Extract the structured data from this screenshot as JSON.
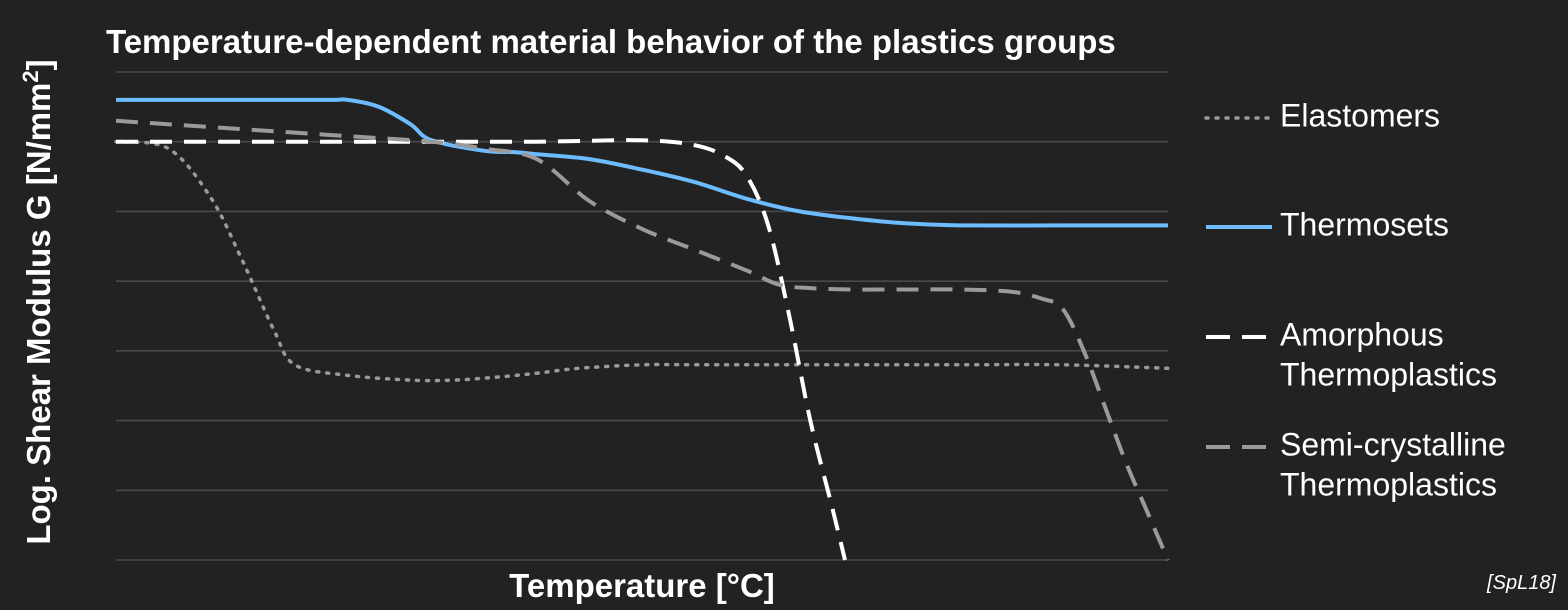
{
  "chart_data": {
    "type": "line",
    "title": "Temperature-dependent material behavior of the plastics groups",
    "xlabel": "Temperature [°C]",
    "ylabel_main": "Log. Shear Modulus G [N/mm",
    "ylabel_sup": "2",
    "ylabel_end": "]",
    "source": "[SpL18]",
    "xlim": [
      0,
      100
    ],
    "ylim": [
      0,
      7
    ],
    "grid": true,
    "legend_position": "right",
    "series": [
      {
        "name": "Elastomers",
        "style": "dotted",
        "color": "#9a9a9a",
        "x": [
          0,
          5,
          9,
          12,
          15,
          17,
          22,
          28,
          32,
          36,
          40,
          44,
          50,
          55,
          60,
          70,
          80,
          90,
          100
        ],
        "y": [
          6,
          5.9,
          5.2,
          4.3,
          3.3,
          2.8,
          2.65,
          2.58,
          2.58,
          2.62,
          2.68,
          2.75,
          2.8,
          2.8,
          2.8,
          2.8,
          2.8,
          2.8,
          2.75
        ]
      },
      {
        "name": "Thermosets",
        "style": "solid",
        "color": "#6cbcff",
        "x": [
          0,
          10,
          20,
          22,
          25,
          28,
          30,
          35,
          38,
          40,
          45,
          50,
          55,
          60,
          65,
          70,
          75,
          80,
          90,
          100
        ],
        "y": [
          6.6,
          6.6,
          6.6,
          6.6,
          6.5,
          6.25,
          6.02,
          5.87,
          5.85,
          5.82,
          5.75,
          5.6,
          5.42,
          5.18,
          5.0,
          4.9,
          4.83,
          4.8,
          4.8,
          4.8
        ]
      },
      {
        "name": "Amorphous Thermoplastics",
        "style": "dashed",
        "color": "#ffffff",
        "x": [
          0,
          10,
          20,
          30,
          40,
          50,
          55,
          58,
          60,
          62,
          64,
          66,
          68,
          69.3
        ],
        "y": [
          6,
          6,
          6,
          6,
          6,
          6.02,
          5.95,
          5.78,
          5.5,
          4.8,
          3.5,
          2.0,
          0.8,
          0.0
        ]
      },
      {
        "name": "Semi-crystalline Thermoplastics",
        "style": "dashed",
        "color": "#9a9a9a",
        "x": [
          0,
          10,
          20,
          30,
          35,
          40,
          45,
          50,
          55,
          60,
          63,
          66,
          70,
          75,
          80,
          85,
          88,
          90,
          92,
          94,
          96,
          98,
          100
        ],
        "y": [
          6.3,
          6.2,
          6.1,
          6.0,
          5.9,
          5.75,
          5.15,
          4.75,
          4.45,
          4.15,
          3.95,
          3.9,
          3.88,
          3.88,
          3.88,
          3.85,
          3.75,
          3.6,
          3.0,
          2.2,
          1.4,
          0.7,
          0.0
        ]
      }
    ],
    "legend": [
      {
        "lines": [
          "Elastomers"
        ]
      },
      {
        "lines": [
          "Thermosets"
        ]
      },
      {
        "lines": [
          "Amorphous",
          "Thermoplastics"
        ]
      },
      {
        "lines": [
          "Semi-crystalline",
          "Thermoplastics"
        ]
      }
    ]
  }
}
